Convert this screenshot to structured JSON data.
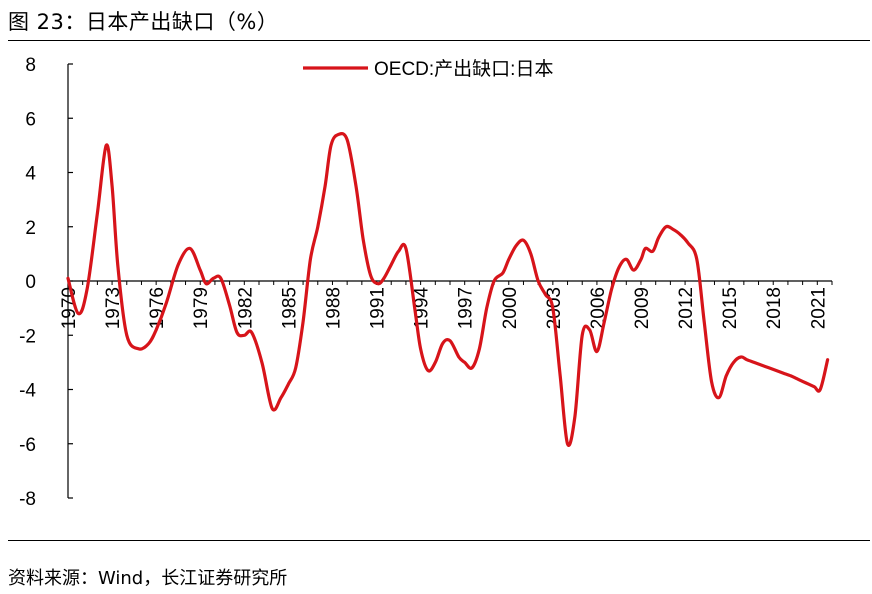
{
  "figure": {
    "title": "图 23：日本产出缺口（%）",
    "source": "资料来源：Wind，长江证券研究所"
  },
  "chart_data": {
    "type": "line",
    "title": "",
    "xlabel": "",
    "ylabel": "",
    "ylim": [
      -8,
      8
    ],
    "yticks": [
      8,
      6,
      4,
      2,
      0,
      -2,
      -4,
      -6,
      -8
    ],
    "xlim": [
      1970,
      2022
    ],
    "x_tick_labels": [
      "1970",
      "1973",
      "1976",
      "1979",
      "1982",
      "1985",
      "1988",
      "1991",
      "1994",
      "1997",
      "2000",
      "2003",
      "2006",
      "2009",
      "2012",
      "2015",
      "2018",
      "2021"
    ],
    "grid": false,
    "legend": "top-center",
    "series_color": "#d7141a",
    "series": [
      {
        "name": "OECD:产出缺口:日本",
        "x": [
          1970,
          1970.7,
          1971.3,
          1972,
          1972.6,
          1973,
          1973.4,
          1974,
          1974.8,
          1975.5,
          1976,
          1976.7,
          1977.5,
          1978.3,
          1979,
          1979.4,
          1979.9,
          1980.4,
          1981,
          1981.5,
          1982,
          1982.5,
          1983.2,
          1983.9,
          1984.5,
          1985,
          1985.5,
          1986,
          1986.5,
          1987,
          1987.5,
          1987.9,
          1988.4,
          1989,
          1989.6,
          1990.1,
          1990.6,
          1991.1,
          1991.5,
          1992,
          1992.5,
          1993,
          1993.6,
          1994,
          1994.5,
          1995,
          1995.5,
          1996,
          1996.6,
          1997,
          1997.5,
          1998,
          1998.5,
          1999,
          1999.6,
          2000,
          2000.5,
          2001,
          2001.5,
          2002,
          2002.5,
          2003,
          2003.5,
          2004,
          2004.5,
          2005,
          2005.5,
          2006,
          2006.5,
          2007,
          2007.5,
          2008,
          2008.5,
          2009,
          2009.3,
          2009.8,
          2010.2,
          2010.7,
          2011.2,
          2011.7,
          2012.2,
          2012.8,
          2013.3,
          2013.8,
          2014.3,
          2014.8,
          2015.3,
          2015.8,
          2016.2,
          2016.7,
          2017.2,
          2017.7,
          2018.2,
          2018.7,
          2019.2,
          2019.6,
          2020,
          2020.4,
          2020.8,
          2021.2,
          2021.7
        ],
        "values": [
          0.1,
          -1.2,
          -0.3,
          2.5,
          5.0,
          3.5,
          0.5,
          -2.0,
          -2.5,
          -2.3,
          -1.8,
          -0.8,
          0.6,
          1.2,
          0.4,
          -0.1,
          0.1,
          0.1,
          -0.9,
          -1.9,
          -2.0,
          -1.9,
          -3.0,
          -4.7,
          -4.3,
          -3.8,
          -3.2,
          -1.5,
          0.8,
          2.0,
          3.5,
          5.0,
          5.4,
          5.2,
          3.5,
          1.5,
          0.2,
          -0.1,
          0.1,
          0.6,
          1.1,
          1.2,
          -1.0,
          -2.5,
          -3.3,
          -3.0,
          -2.3,
          -2.2,
          -2.8,
          -3.0,
          -3.2,
          -2.5,
          -1.0,
          0.0,
          0.3,
          0.8,
          1.3,
          1.5,
          1.0,
          0.0,
          -0.5,
          -1.0,
          -3.5,
          -6.0,
          -5.0,
          -2.0,
          -1.8,
          -2.6,
          -1.5,
          -0.3,
          0.5,
          0.8,
          0.4,
          0.8,
          1.2,
          1.1,
          1.6,
          2.0,
          1.9,
          1.7,
          1.4,
          0.8,
          -1.5,
          -3.7,
          -4.3,
          -3.5,
          -3.0,
          -2.8,
          -2.9,
          -3.0,
          -3.1,
          -3.2,
          -3.3,
          -3.4,
          -3.5,
          -3.6,
          -3.7,
          -3.8,
          -3.9,
          -4.0,
          -2.9
        ]
      }
    ]
  }
}
